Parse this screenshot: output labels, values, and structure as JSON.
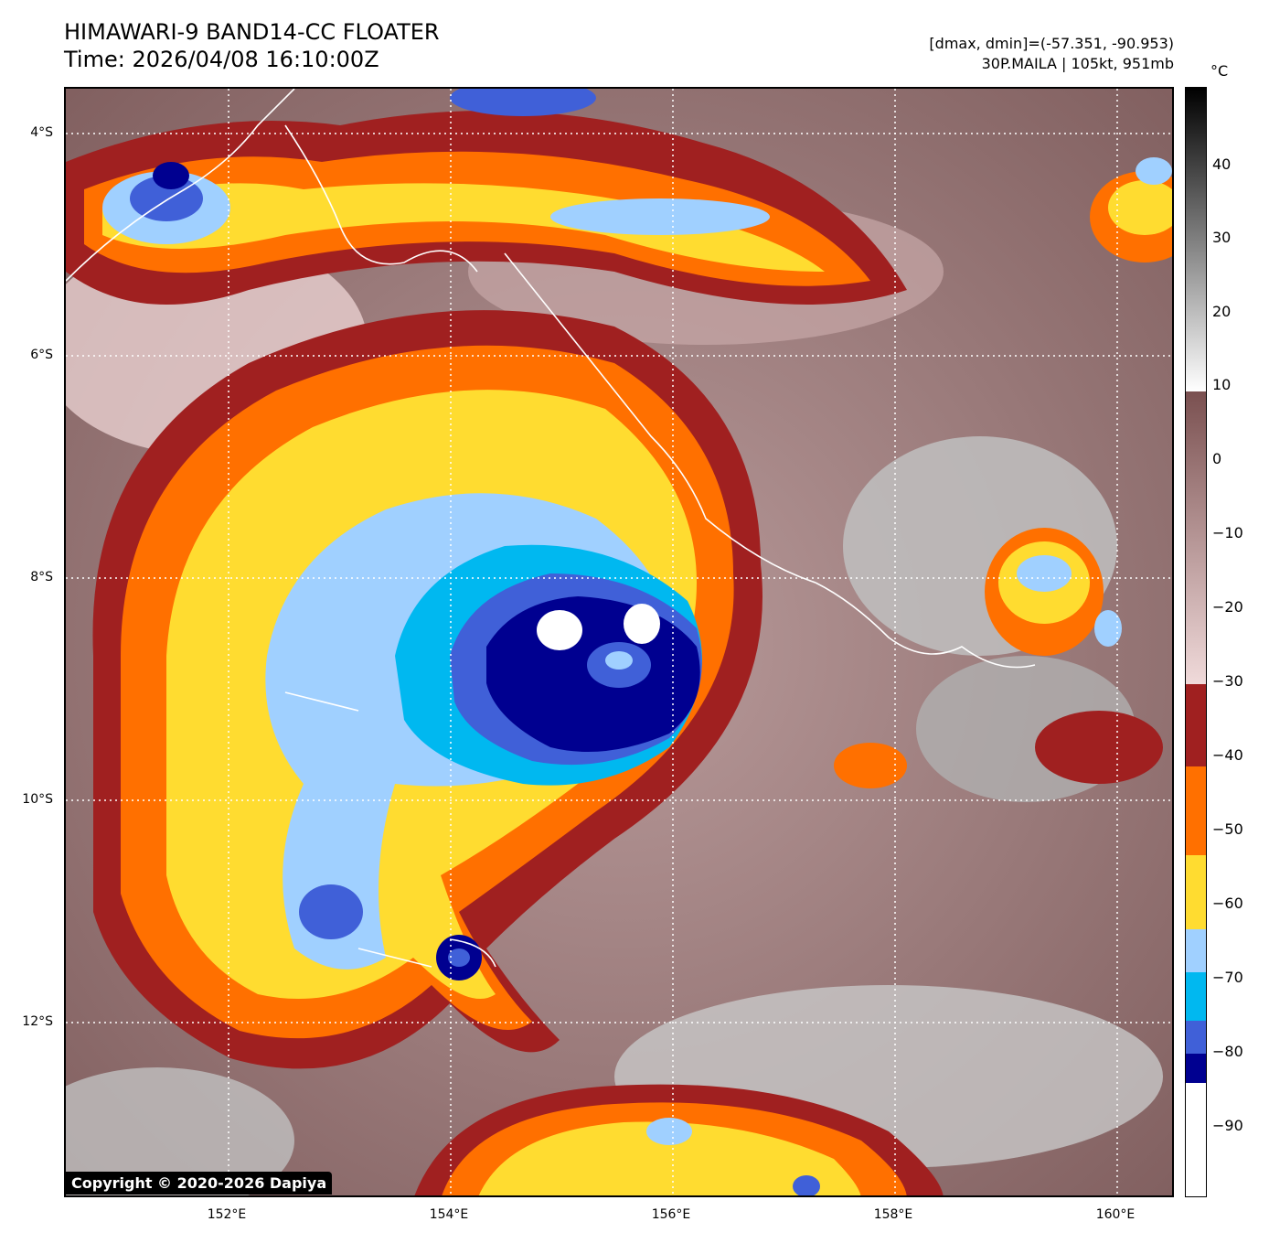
{
  "header": {
    "title_line1": "HIMAWARI-9 BAND14-CC FLOATER",
    "title_line2": "Time: 2026/04/08 16:10:00Z",
    "range_text": "[dmax, dmin]=(-57.351, -90.953)",
    "storm_text": "30P.MAILA | 105kt, 951mb"
  },
  "map": {
    "lat_labels": [
      "4°S",
      "6°S",
      "8°S",
      "10°S",
      "12°S"
    ],
    "lon_labels": [
      "152°E",
      "154°E",
      "156°E",
      "158°E",
      "160°E"
    ],
    "copyright": "Copyright © 2020-2026 Dapiya"
  },
  "colorbar": {
    "unit": "°C",
    "ticks": [
      "40",
      "30",
      "20",
      "10",
      "0",
      "−10",
      "−20",
      "−30",
      "−40",
      "−50",
      "−60",
      "−70",
      "−80",
      "−90"
    ],
    "colors": {
      "black": "#000000",
      "white": "#ffffff",
      "brown": "#7a5050",
      "pink": "#f0dada",
      "dark_red": "#a02020",
      "orange": "#ff7000",
      "yellow": "#ffdc30",
      "light_blue": "#a0d0ff",
      "cyan": "#00b8f0",
      "royal_blue": "#4060d8",
      "navy": "#000090"
    }
  }
}
